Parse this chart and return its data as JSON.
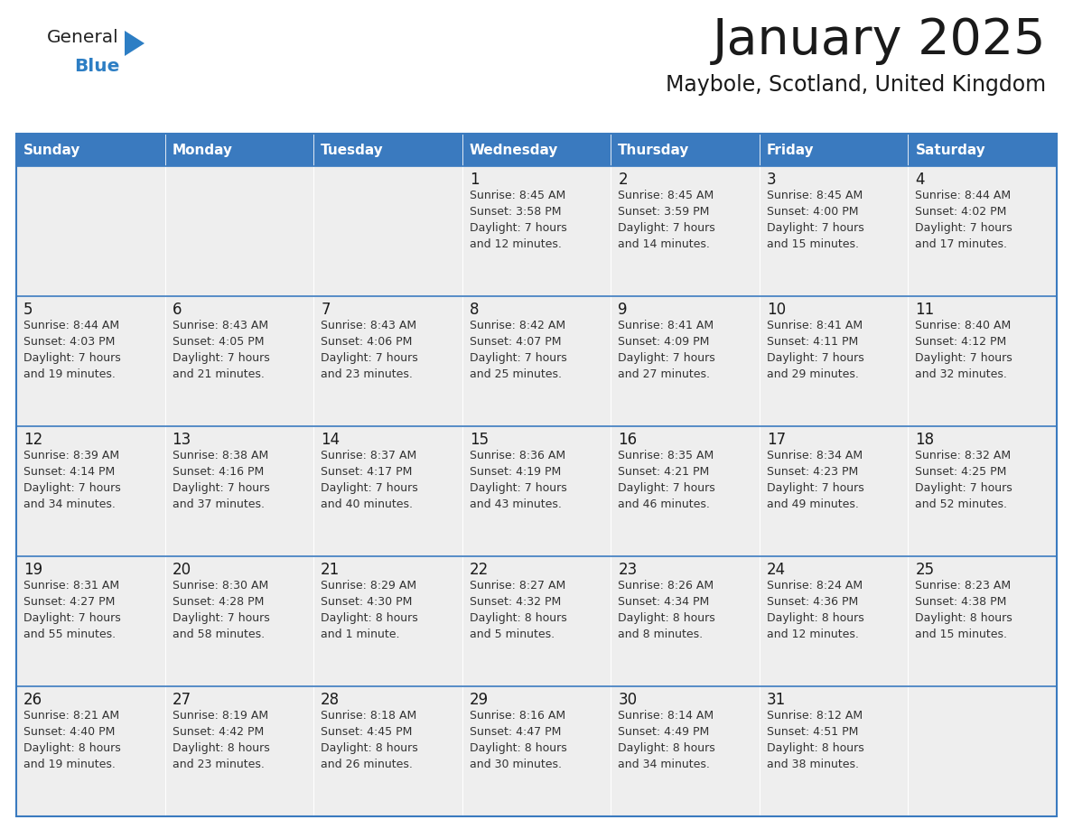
{
  "title": "January 2025",
  "subtitle": "Maybole, Scotland, United Kingdom",
  "header_bg": "#3a7abf",
  "header_text_color": "#ffffff",
  "cell_bg": "#eeeeee",
  "border_color": "#3a7abf",
  "title_color": "#1a1a1a",
  "subtitle_color": "#1a1a1a",
  "cell_text_color": "#333333",
  "day_num_color": "#1a1a1a",
  "logo_general_color": "#222222",
  "logo_blue_color": "#2d7ec4",
  "day_names": [
    "Sunday",
    "Monday",
    "Tuesday",
    "Wednesday",
    "Thursday",
    "Friday",
    "Saturday"
  ],
  "calendar_data": [
    [
      {
        "day": "",
        "text": ""
      },
      {
        "day": "",
        "text": ""
      },
      {
        "day": "",
        "text": ""
      },
      {
        "day": "1",
        "text": "Sunrise: 8:45 AM\nSunset: 3:58 PM\nDaylight: 7 hours\nand 12 minutes."
      },
      {
        "day": "2",
        "text": "Sunrise: 8:45 AM\nSunset: 3:59 PM\nDaylight: 7 hours\nand 14 minutes."
      },
      {
        "day": "3",
        "text": "Sunrise: 8:45 AM\nSunset: 4:00 PM\nDaylight: 7 hours\nand 15 minutes."
      },
      {
        "day": "4",
        "text": "Sunrise: 8:44 AM\nSunset: 4:02 PM\nDaylight: 7 hours\nand 17 minutes."
      }
    ],
    [
      {
        "day": "5",
        "text": "Sunrise: 8:44 AM\nSunset: 4:03 PM\nDaylight: 7 hours\nand 19 minutes."
      },
      {
        "day": "6",
        "text": "Sunrise: 8:43 AM\nSunset: 4:05 PM\nDaylight: 7 hours\nand 21 minutes."
      },
      {
        "day": "7",
        "text": "Sunrise: 8:43 AM\nSunset: 4:06 PM\nDaylight: 7 hours\nand 23 minutes."
      },
      {
        "day": "8",
        "text": "Sunrise: 8:42 AM\nSunset: 4:07 PM\nDaylight: 7 hours\nand 25 minutes."
      },
      {
        "day": "9",
        "text": "Sunrise: 8:41 AM\nSunset: 4:09 PM\nDaylight: 7 hours\nand 27 minutes."
      },
      {
        "day": "10",
        "text": "Sunrise: 8:41 AM\nSunset: 4:11 PM\nDaylight: 7 hours\nand 29 minutes."
      },
      {
        "day": "11",
        "text": "Sunrise: 8:40 AM\nSunset: 4:12 PM\nDaylight: 7 hours\nand 32 minutes."
      }
    ],
    [
      {
        "day": "12",
        "text": "Sunrise: 8:39 AM\nSunset: 4:14 PM\nDaylight: 7 hours\nand 34 minutes."
      },
      {
        "day": "13",
        "text": "Sunrise: 8:38 AM\nSunset: 4:16 PM\nDaylight: 7 hours\nand 37 minutes."
      },
      {
        "day": "14",
        "text": "Sunrise: 8:37 AM\nSunset: 4:17 PM\nDaylight: 7 hours\nand 40 minutes."
      },
      {
        "day": "15",
        "text": "Sunrise: 8:36 AM\nSunset: 4:19 PM\nDaylight: 7 hours\nand 43 minutes."
      },
      {
        "day": "16",
        "text": "Sunrise: 8:35 AM\nSunset: 4:21 PM\nDaylight: 7 hours\nand 46 minutes."
      },
      {
        "day": "17",
        "text": "Sunrise: 8:34 AM\nSunset: 4:23 PM\nDaylight: 7 hours\nand 49 minutes."
      },
      {
        "day": "18",
        "text": "Sunrise: 8:32 AM\nSunset: 4:25 PM\nDaylight: 7 hours\nand 52 minutes."
      }
    ],
    [
      {
        "day": "19",
        "text": "Sunrise: 8:31 AM\nSunset: 4:27 PM\nDaylight: 7 hours\nand 55 minutes."
      },
      {
        "day": "20",
        "text": "Sunrise: 8:30 AM\nSunset: 4:28 PM\nDaylight: 7 hours\nand 58 minutes."
      },
      {
        "day": "21",
        "text": "Sunrise: 8:29 AM\nSunset: 4:30 PM\nDaylight: 8 hours\nand 1 minute."
      },
      {
        "day": "22",
        "text": "Sunrise: 8:27 AM\nSunset: 4:32 PM\nDaylight: 8 hours\nand 5 minutes."
      },
      {
        "day": "23",
        "text": "Sunrise: 8:26 AM\nSunset: 4:34 PM\nDaylight: 8 hours\nand 8 minutes."
      },
      {
        "day": "24",
        "text": "Sunrise: 8:24 AM\nSunset: 4:36 PM\nDaylight: 8 hours\nand 12 minutes."
      },
      {
        "day": "25",
        "text": "Sunrise: 8:23 AM\nSunset: 4:38 PM\nDaylight: 8 hours\nand 15 minutes."
      }
    ],
    [
      {
        "day": "26",
        "text": "Sunrise: 8:21 AM\nSunset: 4:40 PM\nDaylight: 8 hours\nand 19 minutes."
      },
      {
        "day": "27",
        "text": "Sunrise: 8:19 AM\nSunset: 4:42 PM\nDaylight: 8 hours\nand 23 minutes."
      },
      {
        "day": "28",
        "text": "Sunrise: 8:18 AM\nSunset: 4:45 PM\nDaylight: 8 hours\nand 26 minutes."
      },
      {
        "day": "29",
        "text": "Sunrise: 8:16 AM\nSunset: 4:47 PM\nDaylight: 8 hours\nand 30 minutes."
      },
      {
        "day": "30",
        "text": "Sunrise: 8:14 AM\nSunset: 4:49 PM\nDaylight: 8 hours\nand 34 minutes."
      },
      {
        "day": "31",
        "text": "Sunrise: 8:12 AM\nSunset: 4:51 PM\nDaylight: 8 hours\nand 38 minutes."
      },
      {
        "day": "",
        "text": ""
      }
    ]
  ]
}
